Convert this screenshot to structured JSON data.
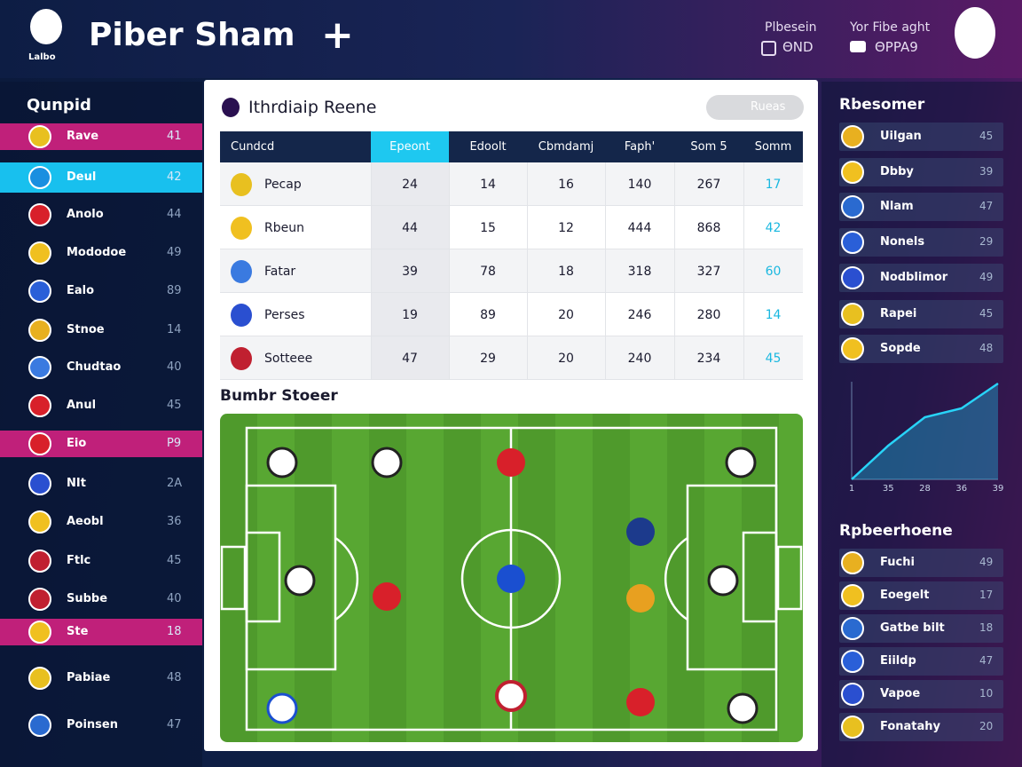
{
  "header": {
    "title": "Piber Sham",
    "badge": "Lalbo",
    "stat1_label": "Plbesein",
    "stat1_value": "ΘND",
    "stat2_label": "Yor Fibe aght",
    "stat2_value": "ΘPPA9"
  },
  "left_panel": {
    "title": "Qunpid",
    "items": [
      {
        "name": "Rave",
        "value": "41"
      },
      {
        "name": "Deul",
        "value": "42"
      },
      {
        "name": "Anolo",
        "value": "44"
      },
      {
        "name": "Mododoe",
        "value": "49"
      },
      {
        "name": "Ealo",
        "value": "89"
      },
      {
        "name": "Stnoe",
        "value": "14"
      },
      {
        "name": "Chudtao",
        "value": "40"
      },
      {
        "name": "Anul",
        "value": "45"
      },
      {
        "name": "Eio",
        "value": "P9"
      },
      {
        "name": "NIt",
        "value": "2A"
      },
      {
        "name": "Aeobl",
        "value": "36"
      },
      {
        "name": "Ftlc",
        "value": "45"
      },
      {
        "name": "Subbe",
        "value": "40"
      },
      {
        "name": "Ste",
        "value": "18"
      },
      {
        "name": "Pabiae",
        "value": "48"
      },
      {
        "name": "Poinsen",
        "value": "47"
      }
    ]
  },
  "center_panel": {
    "title": "Ithrdiaip Reene",
    "button": "Rueas",
    "table": {
      "columns": [
        "Cundcd",
        "Epeont",
        "Edoolt",
        "Cbmdamj",
        "Faph'",
        "Som 5",
        "Somm"
      ],
      "rows": [
        [
          "Pecap",
          24,
          14,
          16,
          140,
          267,
          17
        ],
        [
          "Rbeun",
          44,
          15,
          12,
          444,
          868,
          42
        ],
        [
          "Fatar",
          39,
          78,
          18,
          318,
          327,
          60
        ],
        [
          "Perses",
          19,
          89,
          20,
          246,
          280,
          14
        ],
        [
          "Sotteee",
          47,
          29,
          20,
          240,
          234,
          45
        ]
      ]
    },
    "pitch_title": "Bumbr Stoeer"
  },
  "right_panel": {
    "list1_title": "Rbesomer",
    "list1": [
      {
        "name": "Uilgan",
        "value": "45"
      },
      {
        "name": "Dbby",
        "value": "39"
      },
      {
        "name": "Nlam",
        "value": "47"
      },
      {
        "name": "Nonels",
        "value": "29"
      },
      {
        "name": "Nodblimor",
        "value": "49"
      },
      {
        "name": "Rapei",
        "value": "45"
      },
      {
        "name": "Sopde",
        "value": "48"
      }
    ],
    "chart": {
      "categories": [
        "1",
        "35",
        "28",
        "36",
        "39"
      ],
      "values": [
        0,
        38,
        70,
        80,
        108
      ],
      "ylim": [
        0,
        110
      ]
    },
    "list2_title": "Rpbeerhoene",
    "list2": [
      {
        "name": "Fuchi",
        "value": "49"
      },
      {
        "name": "Eoegelt",
        "value": "17"
      },
      {
        "name": "Gatbe bilt",
        "value": "18"
      },
      {
        "name": "Eiildp",
        "value": "47"
      },
      {
        "name": "Vapoe",
        "value": "10"
      },
      {
        "name": "Fonatahy",
        "value": "20"
      }
    ]
  }
}
